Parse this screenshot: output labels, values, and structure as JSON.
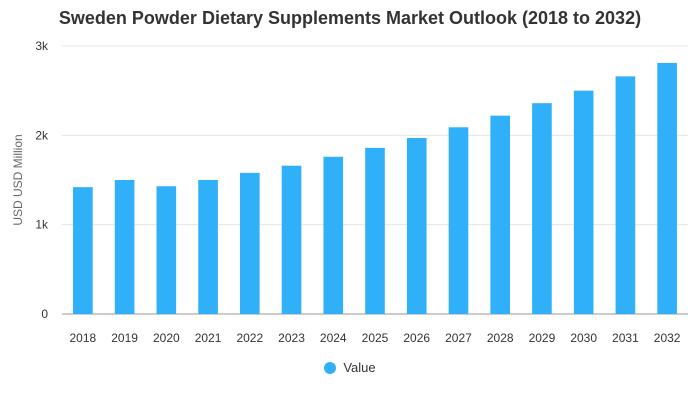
{
  "colors": {
    "bar": "#2fb0f8",
    "grid": "#e5e5e5",
    "axis": "#999999"
  },
  "chart_data": {
    "type": "bar",
    "title": "Sweden Powder Dietary Supplements Market Outlook (2018 to 2032)",
    "ylabel": "USD USD Million",
    "xlabel": "",
    "categories": [
      "2018",
      "2019",
      "2020",
      "2021",
      "2022",
      "2023",
      "2024",
      "2025",
      "2026",
      "2027",
      "2028",
      "2029",
      "2030",
      "2031",
      "2032"
    ],
    "series": [
      {
        "name": "Value",
        "values": [
          1420,
          1500,
          1430,
          1500,
          1580,
          1660,
          1760,
          1860,
          1970,
          2090,
          2220,
          2360,
          2500,
          2660,
          2810
        ]
      }
    ],
    "ylim": [
      0,
      3000
    ],
    "yticks": [
      0,
      1000,
      2000,
      3000
    ],
    "ytick_labels": [
      "0",
      "1k",
      "2k",
      "3k"
    ],
    "grid": true,
    "legend": "bottom"
  }
}
